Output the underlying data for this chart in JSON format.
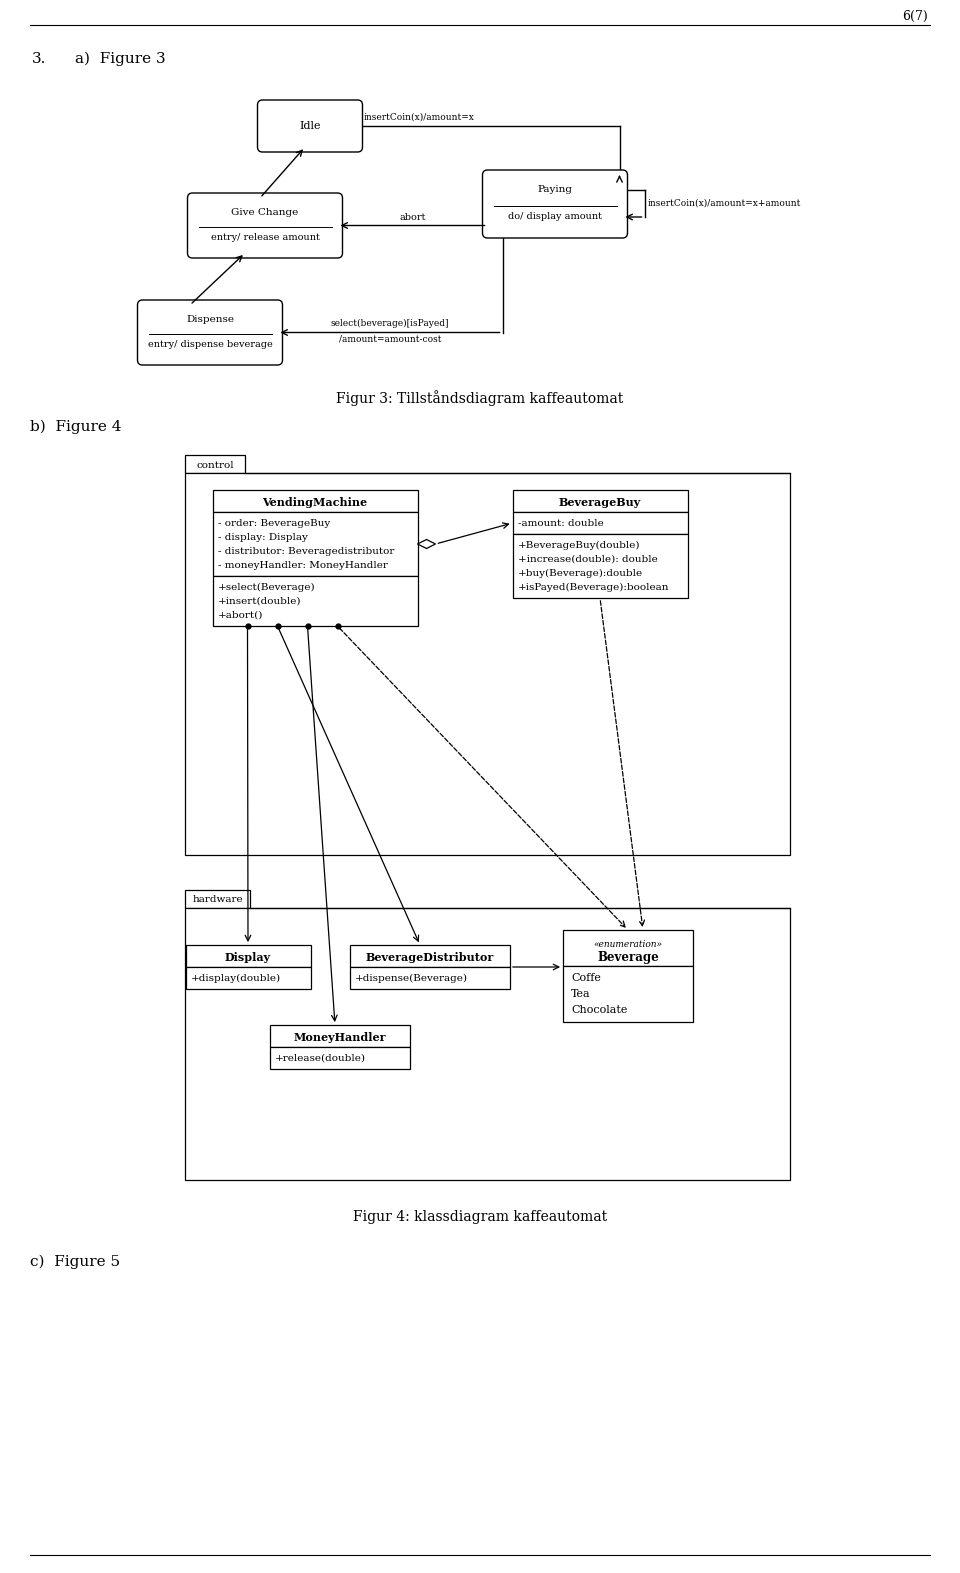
{
  "page_number": "6(7)",
  "section_label": "3.",
  "fig3_label": "a)  Figure 3",
  "fig4_label": "b)  Figure 4",
  "fig5_label": "c)  Figure 5",
  "fig3_caption": "Figur 3: Tillståndsdiagram kaffeautomat",
  "fig4_caption": "Figur 4: klassdiagram kaffeautomat",
  "bg_color": "#ffffff",
  "arrow_idle_to_paying": "insertCoin(x)/amount=x",
  "arrow_paying_self": "insertCoin(x)/amount=x+amount",
  "arrow_abort": "abort",
  "arrow_select_line1": "select(beverage)[isPayed]",
  "arrow_select_line2": "/amount=amount-cost",
  "vm_class_name": "VendingMachine",
  "vm_attr1": "- order: BeverageBuy",
  "vm_attr2": "- display: Display",
  "vm_attr3": "- distributor: Beveragedistributor",
  "vm_attr4": "- moneyHandler: MoneyHandler",
  "vm_meth1": "+select(Beverage)",
  "vm_meth2": "+insert(double)",
  "vm_meth3": "+abort()",
  "bb_class_name": "BeverageBuy",
  "bb_attr1": "-amount: double",
  "bb_meth1": "+BeverageBuy(double)",
  "bb_meth2": "+increase(double): double",
  "bb_meth3": "+buy(Beverage):double",
  "bb_meth4": "+isPayed(Beverage):boolean",
  "display_class_name": "Display",
  "display_meth1": "+display(double)",
  "bd_class_name": "BeverageDistributor",
  "bd_meth1": "+dispense(Beverage)",
  "mh_class_name": "MoneyHandler",
  "mh_meth1": "+release(double)",
  "bev_class_name": "Beverage",
  "bev_stereo": "«enumeration»",
  "bev_val1": "Coffe",
  "bev_val2": "Tea",
  "bev_val3": "Chocolate",
  "control_pkg": "control",
  "hardware_pkg": "hardware"
}
